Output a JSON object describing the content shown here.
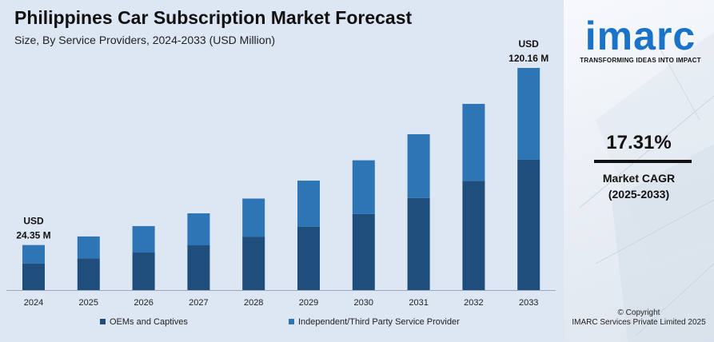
{
  "header": {
    "title": "Philippines Car Subscription Market Forecast",
    "subtitle": "Size, By Service Providers, 2024-2033 (USD Million)"
  },
  "chart_data": {
    "type": "bar",
    "stacked": true,
    "categories": [
      "2024",
      "2025",
      "2026",
      "2027",
      "2028",
      "2029",
      "2030",
      "2031",
      "2032",
      "2033"
    ],
    "series": [
      {
        "name": "OEMs and Captives",
        "color": "#1f4e7d",
        "values": [
          14.3,
          17.1,
          20.3,
          24.2,
          28.9,
          34.3,
          41.1,
          49.8,
          59.1,
          70.6
        ]
      },
      {
        "name": "Independent/Third Party Service Provider",
        "color": "#2e75b6",
        "values": [
          10.05,
          11.9,
          14.3,
          17.3,
          20.6,
          24.9,
          29.1,
          34.5,
          41.6,
          49.56
        ]
      }
    ],
    "ylim": [
      0,
      125
    ],
    "grid": false,
    "legend": "bottom",
    "annotations": [
      {
        "category": "2024",
        "line1": "USD",
        "line2": "24.35 M"
      },
      {
        "category": "2033",
        "line1": "USD",
        "line2": "120.16 M"
      }
    ]
  },
  "sidebar": {
    "logo_text": "imarc",
    "logo_tagline": "TRANSFORMING IDEAS INTO IMPACT",
    "cagr_value": "17.31%",
    "cagr_label_line1": "Market CAGR",
    "cagr_label_line2": "(2025-2033)",
    "copyright_line1": "© Copyright",
    "copyright_line2": "IMARC Services Private Limited 2025"
  },
  "colors": {
    "panel_bg": "#dde6f3",
    "brand_blue": "#1a73c8"
  }
}
